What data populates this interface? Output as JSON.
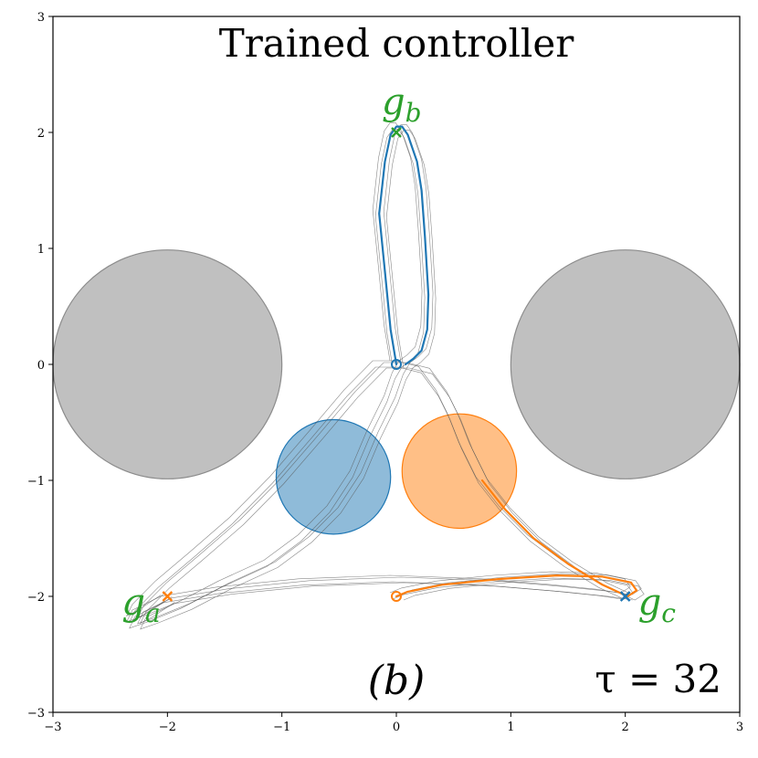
{
  "chart_data": {
    "type": "line",
    "title": "Trained controller",
    "panel_label": "(b)",
    "annotation": "τ = 32",
    "xlim": [
      -3,
      3
    ],
    "ylim": [
      -3,
      3
    ],
    "xticks": [
      -3,
      -2,
      -1,
      0,
      1,
      2,
      3
    ],
    "yticks": [
      -3,
      -2,
      -1,
      0,
      1,
      2,
      3
    ],
    "xtick_labels": [
      "−3",
      "−2",
      "−1",
      "0",
      "1",
      "2",
      "3"
    ],
    "ytick_labels": [
      "−3",
      "−2",
      "−1",
      "0",
      "1",
      "2",
      "3"
    ],
    "grid": false,
    "obstacles": [
      {
        "cx": -2,
        "cy": 0,
        "r": 1,
        "color": "#bdbdbd"
      },
      {
        "cx": 2,
        "cy": 0,
        "r": 1,
        "color": "#bdbdbd"
      }
    ],
    "agents": [
      {
        "cx": -0.55,
        "cy": -0.97,
        "r": 0.5,
        "color": "#1f77b4"
      },
      {
        "cx": 0.55,
        "cy": -0.92,
        "r": 0.5,
        "color": "#ff7f0e"
      }
    ],
    "goals": [
      {
        "name": "g_a",
        "base": "g",
        "sub": "a",
        "x": -2,
        "y": -2
      },
      {
        "name": "g_b",
        "base": "g",
        "sub": "b",
        "x": 0,
        "y": 2
      },
      {
        "name": "g_c",
        "base": "g",
        "sub": "c",
        "x": 2,
        "y": -2
      }
    ],
    "series": [
      {
        "color": "#1f77b4",
        "start": [
          0,
          0
        ],
        "end": [
          2,
          -2
        ],
        "x": [
          0,
          -0.05,
          -0.1,
          -0.15,
          -0.1,
          -0.05,
          0.0,
          0.05,
          0.1,
          0.18,
          0.22,
          0.25,
          0.28,
          0.27,
          0.22,
          0.15,
          0.08,
          0.02,
          -0.05,
          -0.2,
          -0.35,
          -0.55,
          -0.8,
          -1.1,
          -1.5,
          -1.85,
          -2.15,
          -2.3,
          -2.25,
          -2.0,
          -1.5,
          -0.8,
          0.0,
          0.8,
          1.4,
          1.8,
          2.0
        ],
        "y": [
          0,
          0.3,
          0.8,
          1.3,
          1.75,
          1.98,
          2.05,
          2.05,
          1.98,
          1.75,
          1.5,
          1.1,
          0.6,
          0.3,
          0.12,
          0.05,
          0.0,
          -0.1,
          -0.3,
          -0.6,
          -0.95,
          -1.25,
          -1.5,
          -1.72,
          -1.9,
          -2.08,
          -2.2,
          -2.25,
          -2.15,
          -2.03,
          -1.95,
          -1.88,
          -1.85,
          -1.88,
          -1.93,
          -1.97,
          -2.0
        ]
      },
      {
        "color": "#ff7f0e",
        "start": [
          0,
          -2
        ],
        "end": [
          -2,
          -2
        ],
        "x": [
          0,
          0.1,
          0.4,
          0.9,
          1.4,
          1.8,
          2.05,
          2.1,
          2.02,
          1.8,
          1.5,
          1.2,
          0.95,
          0.75,
          0.6,
          0.5,
          0.4,
          0.25,
          0.05,
          -0.15,
          -0.4,
          -0.7,
          -1.05,
          -1.4,
          -1.75,
          -2.05,
          -2.25,
          -2.3,
          -2.2,
          -2.0
        ],
        "y": [
          -2,
          -1.96,
          -1.9,
          -1.85,
          -1.82,
          -1.83,
          -1.88,
          -1.95,
          -2.0,
          -1.9,
          -1.72,
          -1.5,
          -1.25,
          -1.0,
          -0.7,
          -0.45,
          -0.25,
          -0.05,
          0.0,
          0.0,
          -0.25,
          -0.6,
          -1.0,
          -1.35,
          -1.65,
          -1.9,
          -2.1,
          -2.2,
          -2.15,
          -2.02
        ]
      }
    ]
  }
}
